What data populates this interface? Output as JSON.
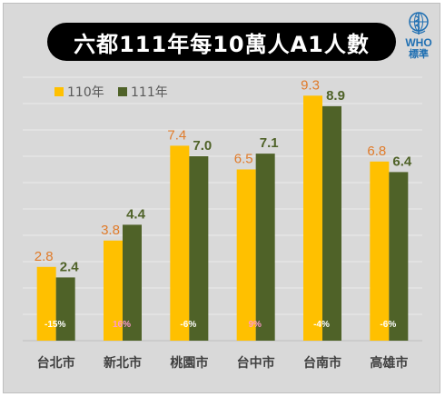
{
  "title": "六都111年每10萬人A1人數",
  "badge": {
    "name": "WHO",
    "subtitle": "標準",
    "icon": "who-emblem-icon",
    "color": "#1f6fb2"
  },
  "colors": {
    "s110": "#ffc000",
    "s111": "#4f6228",
    "label110": "#e07b2a",
    "label111": "#4f6228",
    "pct_white": "#ffffff",
    "pct_pink": "#ff99cc"
  },
  "chart_data": {
    "type": "bar",
    "title": "六都111年每10萬人A1人數",
    "categories": [
      "台北市",
      "新北市",
      "桃園市",
      "台中市",
      "台南市",
      "高雄市"
    ],
    "series": [
      {
        "name": "110年",
        "values": [
          2.8,
          3.8,
          7.4,
          6.5,
          9.3,
          6.8
        ],
        "color": "#ffc000"
      },
      {
        "name": "111年",
        "values": [
          2.4,
          4.4,
          7.0,
          7.1,
          8.9,
          6.4
        ],
        "color": "#4f6228"
      }
    ],
    "change_labels": [
      "-15%",
      "16%",
      "-6%",
      "9%",
      "-4%",
      "-6%"
    ],
    "change_label_colors": [
      "#ffffff",
      "#ff99cc",
      "#ffffff",
      "#ff99cc",
      "#ffffff",
      "#ffffff"
    ],
    "ylim": [
      0,
      10
    ],
    "grid": true,
    "legend": "top-left",
    "value_labels": true
  }
}
